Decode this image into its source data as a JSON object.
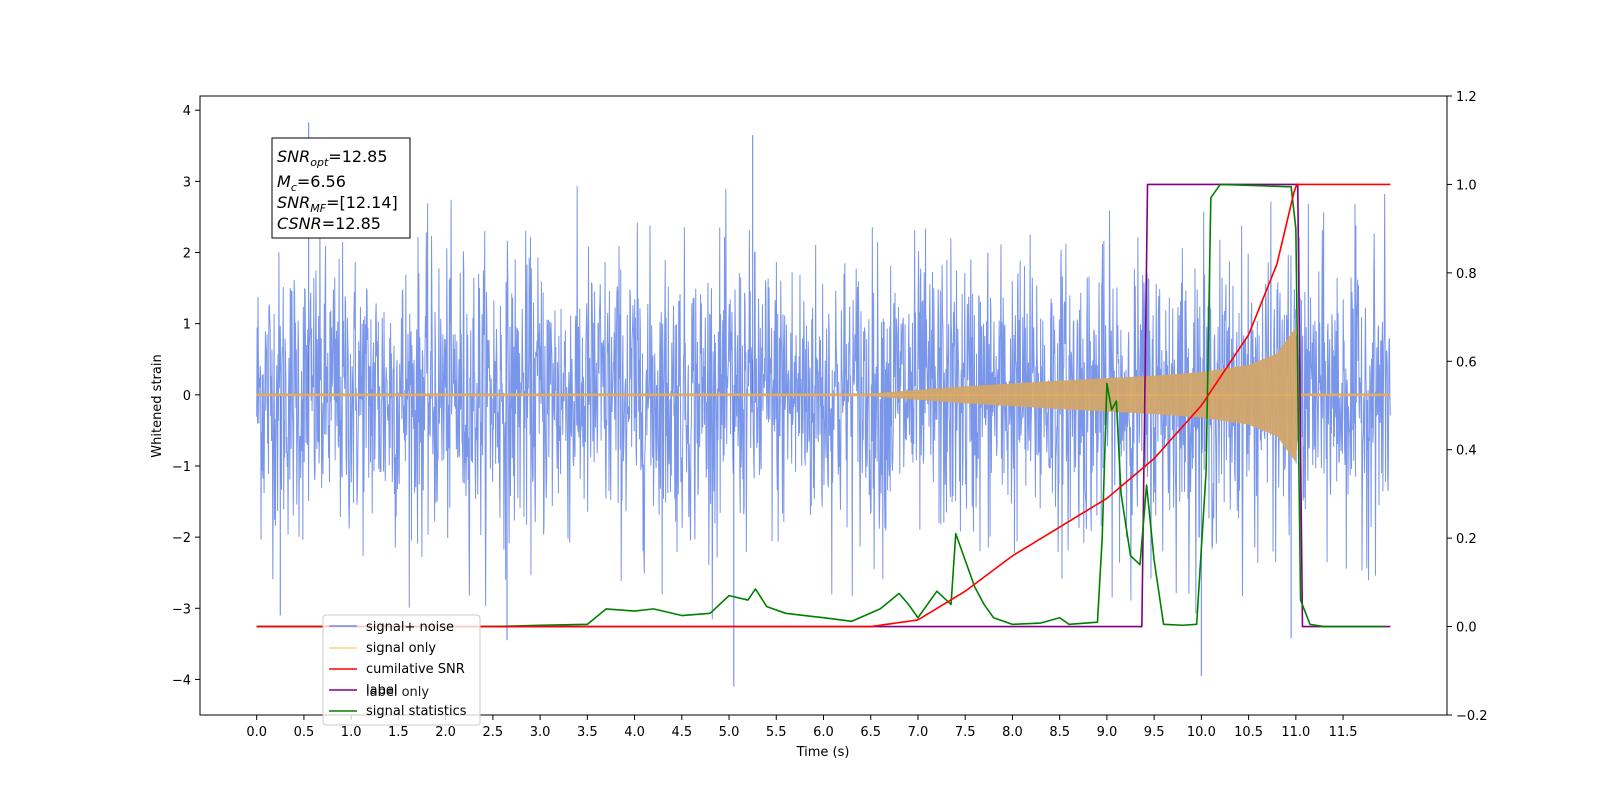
{
  "chart_data": {
    "type": "line",
    "xlabel": "Time (s)",
    "ylabel_left": "Whitened strain",
    "xlim": [
      -0.6,
      12.6
    ],
    "ylim_left": [
      -4.5,
      4.2
    ],
    "ylim_right": [
      -0.2,
      1.2
    ],
    "xticks": [
      "0.0",
      "0.5",
      "1.0",
      "1.5",
      "2.0",
      "2.5",
      "3.0",
      "3.5",
      "4.0",
      "4.5",
      "5.0",
      "5.5",
      "6.0",
      "6.5",
      "7.0",
      "7.5",
      "8.0",
      "8.5",
      "9.0",
      "9.5",
      "10.0",
      "10.5",
      "11.0",
      "11.5"
    ],
    "yticks_left": [
      "4",
      "3",
      "2",
      "1",
      "0",
      "−1",
      "−2",
      "−3",
      "−4"
    ],
    "yticks_right": [
      "1.2",
      "1.0",
      "0.8",
      "0.6",
      "0.4",
      "0.2",
      "0.0",
      "−0.2"
    ],
    "annotation": {
      "snr_opt": "=12.85",
      "mc": "=6.56",
      "snr_mf": "=[12.14]",
      "csnr": "=12.85"
    },
    "legend": {
      "placement": "lower-left",
      "entries": [
        "signal+ noise",
        "signal only",
        "cumilative SNR",
        "label",
        "signal statistics"
      ],
      "occluded_text": "label only"
    },
    "series": [
      {
        "name": "signal+ noise",
        "axis": "left",
        "color": "#4169e1",
        "t_range": [
          0.0,
          12.0
        ],
        "envelope_typical": [
          -1.9,
          1.9
        ],
        "peaks": [
          [
            0.55,
            3.83
          ],
          [
            5.25,
            3.65
          ],
          [
            5.05,
            -4.1
          ],
          [
            10.0,
            -3.95
          ],
          [
            0.25,
            -3.1
          ],
          [
            2.65,
            -3.45
          ],
          [
            10.95,
            -3.42
          ]
        ]
      },
      {
        "name": "signal only",
        "axis": "left",
        "color": "#d2a56a",
        "chirp_envelope": {
          "t": [
            0.0,
            6.5,
            7.5,
            8.5,
            9.5,
            10.0,
            10.5,
            10.8,
            11.0,
            11.05,
            12.0
          ],
          "amp": [
            0.02,
            0.02,
            0.12,
            0.2,
            0.27,
            0.32,
            0.42,
            0.58,
            0.95,
            0.02,
            0.02
          ]
        }
      },
      {
        "name": "cumilative SNR",
        "axis": "right",
        "color": "#ff0000",
        "x": [
          0.0,
          6.5,
          7.0,
          7.5,
          8.0,
          8.5,
          9.0,
          9.5,
          10.0,
          10.5,
          10.8,
          11.0,
          12.0
        ],
        "y": [
          0.0,
          0.0,
          0.015,
          0.08,
          0.16,
          0.225,
          0.29,
          0.38,
          0.5,
          0.66,
          0.82,
          1.0,
          1.0
        ]
      },
      {
        "name": "label",
        "axis": "right",
        "color": "#800080",
        "x": [
          0.0,
          9.37,
          9.43,
          11.02,
          11.07,
          12.0
        ],
        "y": [
          0.0,
          0.0,
          1.0,
          1.0,
          0.0,
          0.0
        ]
      },
      {
        "name": "signal statistics",
        "axis": "right",
        "color": "#008000",
        "x": [
          0.0,
          2.5,
          3.0,
          3.5,
          3.7,
          4.0,
          4.2,
          4.5,
          4.8,
          5.0,
          5.2,
          5.28,
          5.4,
          5.6,
          5.8,
          6.0,
          6.3,
          6.6,
          6.8,
          6.9,
          7.0,
          7.2,
          7.35,
          7.4,
          7.6,
          7.7,
          7.8,
          8.0,
          8.3,
          8.5,
          8.6,
          8.9,
          8.95,
          9.0,
          9.05,
          9.1,
          9.15,
          9.25,
          9.35,
          9.42,
          9.5,
          9.6,
          9.8,
          9.95,
          10.05,
          10.1,
          10.2,
          10.5,
          10.9,
          10.95,
          11.0,
          11.05,
          11.15,
          11.3,
          11.5,
          11.8,
          11.95
        ],
        "y": [
          0.0,
          0.0,
          0.003,
          0.005,
          0.04,
          0.035,
          0.04,
          0.025,
          0.03,
          0.07,
          0.06,
          0.085,
          0.045,
          0.03,
          0.025,
          0.02,
          0.012,
          0.04,
          0.075,
          0.05,
          0.02,
          0.08,
          0.05,
          0.21,
          0.09,
          0.05,
          0.02,
          0.005,
          0.008,
          0.02,
          0.005,
          0.01,
          0.2,
          0.55,
          0.49,
          0.51,
          0.3,
          0.16,
          0.14,
          0.32,
          0.15,
          0.005,
          0.003,
          0.005,
          0.35,
          0.97,
          1.0,
          0.998,
          0.995,
          0.995,
          0.9,
          0.06,
          0.005,
          0.0,
          0.0,
          0.0,
          0.0
        ]
      }
    ]
  }
}
